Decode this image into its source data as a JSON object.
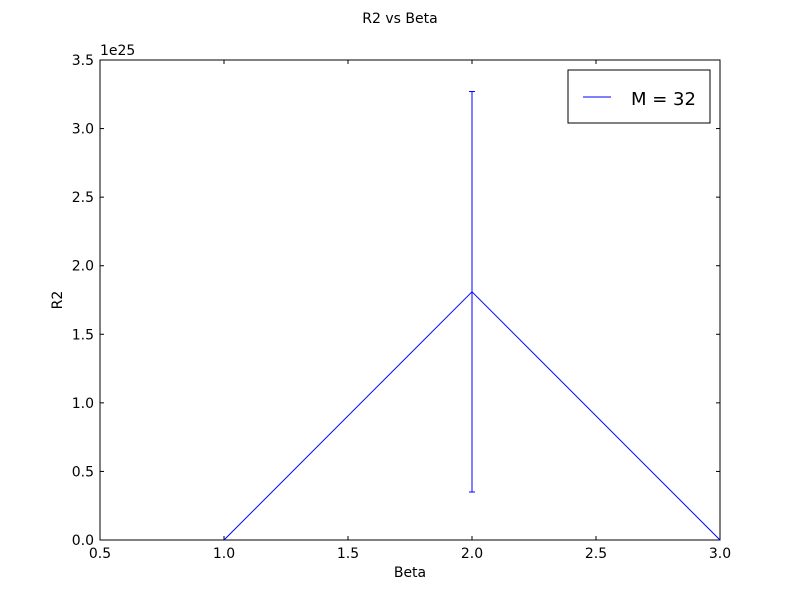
{
  "chart_data": {
    "type": "line",
    "title": "R2 vs Beta",
    "xlabel": "Beta",
    "ylabel": "R2",
    "y_offset_label": "1e25",
    "xlim": [
      0.5,
      3.0
    ],
    "ylim": [
      0.0,
      3.5
    ],
    "x_ticks": [
      0.5,
      1.0,
      1.5,
      2.0,
      2.5,
      3.0
    ],
    "x_tick_labels": [
      "0.5",
      "1.0",
      "1.5",
      "2.0",
      "2.5",
      "3.0"
    ],
    "y_ticks": [
      0.0,
      0.5,
      1.0,
      1.5,
      2.0,
      2.5,
      3.0,
      3.5
    ],
    "y_tick_labels": [
      "0.0",
      "0.5",
      "1.0",
      "1.5",
      "2.0",
      "2.5",
      "3.0",
      "3.5"
    ],
    "grid": false,
    "legend_position": "top-right",
    "series": [
      {
        "name": "M = 32",
        "color": "#0000ff",
        "x": [
          1.0,
          2.0,
          3.0
        ],
        "y": [
          0.0,
          1.81,
          0.0
        ],
        "yerr": [
          0.0,
          1.46,
          0.0
        ]
      }
    ]
  }
}
